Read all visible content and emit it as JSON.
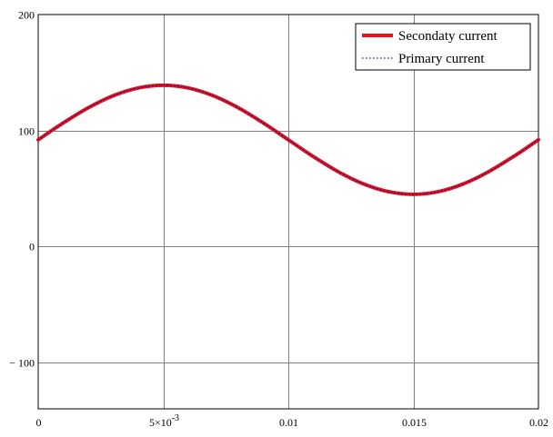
{
  "chart_data": {
    "type": "line",
    "title": "",
    "xlabel": "",
    "ylabel": "",
    "xlim": [
      0,
      0.02
    ],
    "ylim": [
      -140,
      200
    ],
    "grid": true,
    "legend_position": "top-right",
    "x_ticks": [
      {
        "value": 0,
        "label": "0"
      },
      {
        "value": 0.005,
        "label": "5×10",
        "exponent": "-3"
      },
      {
        "value": 0.01,
        "label": "0.01"
      },
      {
        "value": 0.015,
        "label": "0.015"
      },
      {
        "value": 0.02,
        "label": "0.02"
      }
    ],
    "y_ticks": [
      {
        "value": 200,
        "label": "200"
      },
      {
        "value": 100,
        "label": "100"
      },
      {
        "value": 0,
        "label": "0"
      },
      {
        "value": -100,
        "label": "− 100"
      }
    ],
    "series": [
      {
        "name": "Secondaty current",
        "color": "#ee1111",
        "style": "solid",
        "x": [
          0,
          0.001,
          0.002,
          0.003,
          0.004,
          0.005,
          0.006,
          0.007,
          0.008,
          0.009,
          0.01,
          0.011,
          0.012,
          0.013,
          0.014,
          0.015,
          0.016,
          0.017,
          0.018,
          0.019,
          0.02
        ],
        "y": [
          92,
          106.5,
          119.6,
          130,
          136.7,
          139,
          136.7,
          130,
          119.6,
          106.5,
          92,
          77.5,
          64.4,
          54,
          47.3,
          45,
          47.3,
          54,
          64.4,
          77.5,
          92
        ]
      },
      {
        "name": "Primary current",
        "color": "#1a1aa8",
        "style": "dotted",
        "x": [
          0,
          0.001,
          0.002,
          0.003,
          0.004,
          0.005,
          0.006,
          0.007,
          0.008,
          0.009,
          0.01,
          0.011,
          0.012,
          0.013,
          0.014,
          0.015,
          0.016,
          0.017,
          0.018,
          0.019,
          0.02
        ],
        "y": [
          92,
          106.5,
          119.6,
          130,
          136.7,
          139,
          136.7,
          130,
          119.6,
          106.5,
          92,
          77.5,
          64.4,
          54,
          47.3,
          45,
          47.3,
          54,
          64.4,
          77.5,
          92
        ]
      }
    ]
  }
}
